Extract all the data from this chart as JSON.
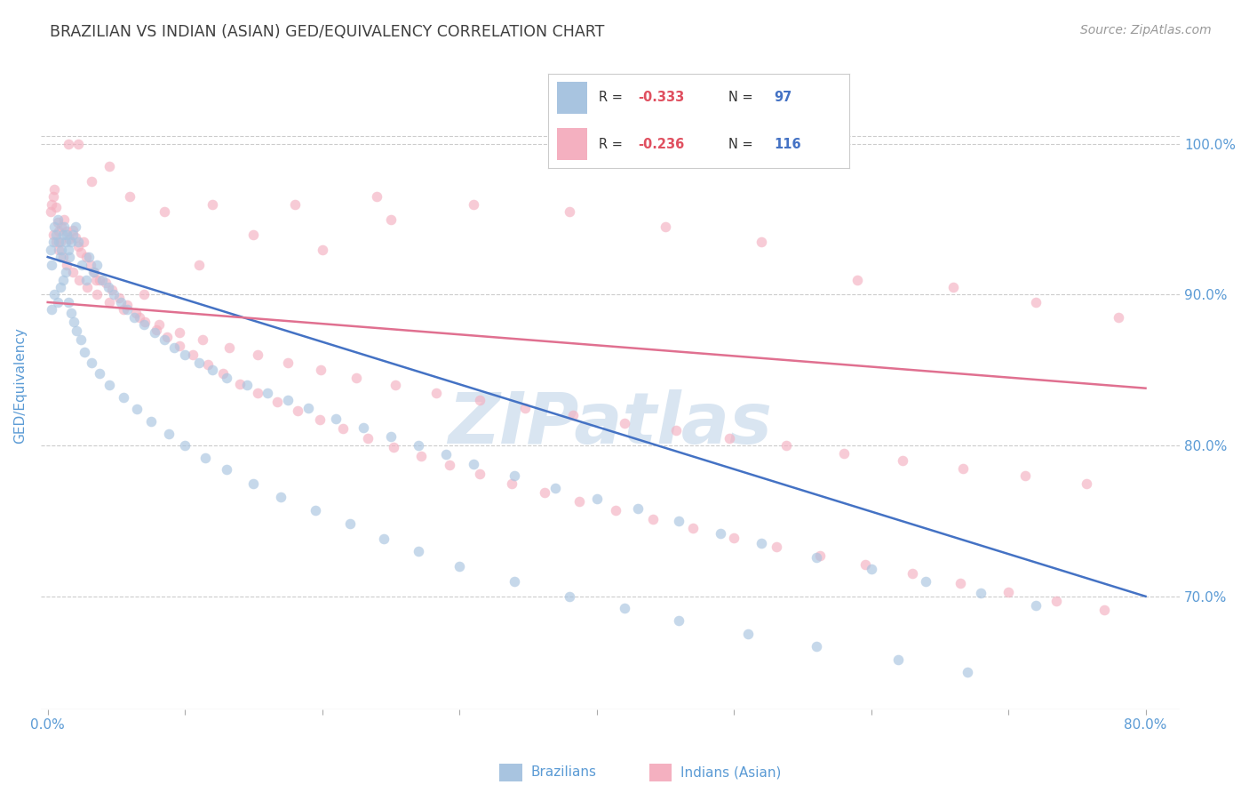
{
  "title": "BRAZILIAN VS INDIAN (ASIAN) GED/EQUIVALENCY CORRELATION CHART",
  "source": "Source: ZipAtlas.com",
  "ylabel": "GED/Equivalency",
  "x_tick_labels_shown": [
    "0.0%",
    "80.0%"
  ],
  "x_tick_values": [
    0.0,
    0.1,
    0.2,
    0.3,
    0.4,
    0.5,
    0.6,
    0.7,
    0.8
  ],
  "y_tick_labels": [
    "70.0%",
    "80.0%",
    "90.0%",
    "100.0%"
  ],
  "y_tick_values": [
    0.7,
    0.8,
    0.9,
    1.0
  ],
  "xlim": [
    -0.005,
    0.825
  ],
  "ylim": [
    0.625,
    1.055
  ],
  "legend_r_color": "#e05060",
  "legend_n_color": "#4472c4",
  "blue_dot_color": "#a8c4e0",
  "pink_dot_color": "#f4b0c0",
  "blue_line_color": "#4472c4",
  "pink_line_color": "#e07090",
  "watermark_color": "#c0d4e8",
  "grid_color": "#cccccc",
  "axis_label_color": "#5b9bd5",
  "title_color": "#404040",
  "dot_size": 70,
  "dot_alpha": 0.65,
  "brazil_line_y0": 0.925,
  "brazil_line_y1": 0.7,
  "indian_line_y0": 0.895,
  "indian_line_y1": 0.838,
  "brazil_x": [
    0.002,
    0.003,
    0.004,
    0.005,
    0.006,
    0.007,
    0.008,
    0.009,
    0.01,
    0.011,
    0.012,
    0.013,
    0.014,
    0.015,
    0.016,
    0.017,
    0.018,
    0.02,
    0.022,
    0.025,
    0.028,
    0.03,
    0.033,
    0.036,
    0.04,
    0.044,
    0.048,
    0.053,
    0.058,
    0.063,
    0.07,
    0.078,
    0.085,
    0.092,
    0.1,
    0.11,
    0.12,
    0.13,
    0.145,
    0.16,
    0.175,
    0.19,
    0.21,
    0.23,
    0.25,
    0.27,
    0.29,
    0.31,
    0.34,
    0.37,
    0.4,
    0.43,
    0.46,
    0.49,
    0.52,
    0.56,
    0.6,
    0.64,
    0.68,
    0.72,
    0.003,
    0.005,
    0.007,
    0.009,
    0.011,
    0.013,
    0.015,
    0.017,
    0.019,
    0.021,
    0.024,
    0.027,
    0.032,
    0.038,
    0.045,
    0.055,
    0.065,
    0.075,
    0.088,
    0.1,
    0.115,
    0.13,
    0.15,
    0.17,
    0.195,
    0.22,
    0.245,
    0.27,
    0.3,
    0.34,
    0.38,
    0.42,
    0.46,
    0.51,
    0.56,
    0.62,
    0.67
  ],
  "brazil_y": [
    0.93,
    0.92,
    0.935,
    0.945,
    0.94,
    0.95,
    0.935,
    0.925,
    0.93,
    0.94,
    0.945,
    0.935,
    0.94,
    0.93,
    0.925,
    0.935,
    0.94,
    0.945,
    0.935,
    0.92,
    0.91,
    0.925,
    0.915,
    0.92,
    0.91,
    0.905,
    0.9,
    0.895,
    0.89,
    0.885,
    0.88,
    0.875,
    0.87,
    0.865,
    0.86,
    0.855,
    0.85,
    0.845,
    0.84,
    0.835,
    0.83,
    0.825,
    0.818,
    0.812,
    0.806,
    0.8,
    0.794,
    0.788,
    0.78,
    0.772,
    0.765,
    0.758,
    0.75,
    0.742,
    0.735,
    0.726,
    0.718,
    0.71,
    0.702,
    0.694,
    0.89,
    0.9,
    0.895,
    0.905,
    0.91,
    0.915,
    0.895,
    0.888,
    0.882,
    0.876,
    0.87,
    0.862,
    0.855,
    0.848,
    0.84,
    0.832,
    0.824,
    0.816,
    0.808,
    0.8,
    0.792,
    0.784,
    0.775,
    0.766,
    0.757,
    0.748,
    0.738,
    0.73,
    0.72,
    0.71,
    0.7,
    0.692,
    0.684,
    0.675,
    0.667,
    0.658,
    0.65
  ],
  "indian_x": [
    0.002,
    0.003,
    0.004,
    0.005,
    0.006,
    0.007,
    0.008,
    0.009,
    0.01,
    0.012,
    0.014,
    0.016,
    0.018,
    0.02,
    0.022,
    0.024,
    0.026,
    0.028,
    0.031,
    0.034,
    0.038,
    0.042,
    0.047,
    0.052,
    0.058,
    0.064,
    0.071,
    0.079,
    0.087,
    0.096,
    0.106,
    0.117,
    0.128,
    0.14,
    0.153,
    0.167,
    0.182,
    0.198,
    0.215,
    0.233,
    0.252,
    0.272,
    0.293,
    0.315,
    0.338,
    0.362,
    0.387,
    0.414,
    0.441,
    0.47,
    0.5,
    0.531,
    0.563,
    0.596,
    0.63,
    0.665,
    0.7,
    0.735,
    0.77,
    0.004,
    0.006,
    0.008,
    0.011,
    0.014,
    0.018,
    0.023,
    0.029,
    0.036,
    0.045,
    0.055,
    0.067,
    0.081,
    0.096,
    0.113,
    0.132,
    0.153,
    0.175,
    0.199,
    0.225,
    0.253,
    0.283,
    0.315,
    0.348,
    0.383,
    0.42,
    0.458,
    0.497,
    0.538,
    0.58,
    0.623,
    0.667,
    0.712,
    0.757,
    0.035,
    0.07,
    0.11,
    0.15,
    0.2,
    0.25,
    0.31,
    0.38,
    0.45,
    0.52,
    0.59,
    0.66,
    0.72,
    0.78,
    0.015,
    0.022,
    0.045,
    0.032,
    0.06,
    0.085,
    0.12,
    0.18,
    0.24
  ],
  "indian_y": [
    0.955,
    0.96,
    0.965,
    0.97,
    0.958,
    0.948,
    0.942,
    0.935,
    0.945,
    0.95,
    0.942,
    0.937,
    0.943,
    0.938,
    0.932,
    0.928,
    0.935,
    0.925,
    0.92,
    0.915,
    0.91,
    0.908,
    0.903,
    0.898,
    0.893,
    0.888,
    0.882,
    0.877,
    0.872,
    0.866,
    0.86,
    0.854,
    0.848,
    0.841,
    0.835,
    0.829,
    0.823,
    0.817,
    0.811,
    0.805,
    0.799,
    0.793,
    0.787,
    0.781,
    0.775,
    0.769,
    0.763,
    0.757,
    0.751,
    0.745,
    0.739,
    0.733,
    0.727,
    0.721,
    0.715,
    0.709,
    0.703,
    0.697,
    0.691,
    0.94,
    0.935,
    0.93,
    0.925,
    0.92,
    0.915,
    0.91,
    0.905,
    0.9,
    0.895,
    0.89,
    0.885,
    0.88,
    0.875,
    0.87,
    0.865,
    0.86,
    0.855,
    0.85,
    0.845,
    0.84,
    0.835,
    0.83,
    0.825,
    0.82,
    0.815,
    0.81,
    0.805,
    0.8,
    0.795,
    0.79,
    0.785,
    0.78,
    0.775,
    0.91,
    0.9,
    0.92,
    0.94,
    0.93,
    0.95,
    0.96,
    0.955,
    0.945,
    0.935,
    0.91,
    0.905,
    0.895,
    0.885,
    1.0,
    1.0,
    0.985,
    0.975,
    0.965,
    0.955,
    0.96,
    0.96,
    0.965
  ]
}
